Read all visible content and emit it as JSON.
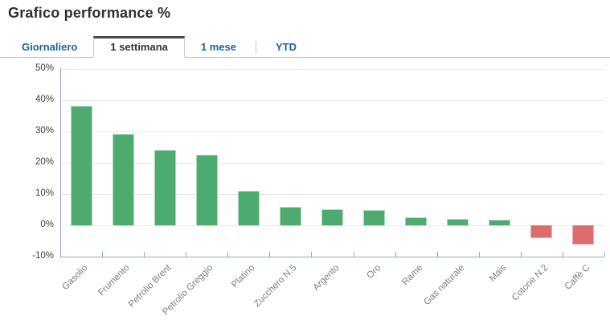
{
  "page": {
    "title": "Grafico performance %"
  },
  "tabs": [
    {
      "label": "Giornaliero",
      "active": false
    },
    {
      "label": "1 settimana",
      "active": true
    },
    {
      "label": "1 mese",
      "active": false
    },
    {
      "label": "YTD",
      "active": false
    }
  ],
  "chart_data": {
    "type": "bar",
    "title": "Grafico performance %",
    "xlabel": "",
    "ylabel": "",
    "categories": [
      "Gasolio",
      "Frumento",
      "Petrolio Brent",
      "Petrolio Greggio",
      "Platino",
      "Zucchero N.5",
      "Argento",
      "Oro",
      "Rame",
      "Gas naturale",
      "Mais",
      "Cotone N.2",
      "Caffè C"
    ],
    "values": [
      38.2,
      29.2,
      24.2,
      22.5,
      11.0,
      5.9,
      5.2,
      4.8,
      2.6,
      2.0,
      1.7,
      -4.1,
      -6.2
    ],
    "unit": "%",
    "ylim": [
      -10,
      50
    ],
    "ytick_step": 10,
    "ytick_labels": [
      "50%",
      "40%",
      "30%",
      "20%",
      "10%",
      "0%",
      "-10%"
    ],
    "grid": true,
    "legend": "none",
    "colors": {
      "positive_fill": "#4dab6f",
      "positive_border": "#aad9bb",
      "negative_fill": "#dd6d6d",
      "negative_border": "#f0adad",
      "axis_line": "#8aa9cd",
      "gridline": "#e6e6e6",
      "ytick_label": "#3c3c3c",
      "category_label": "#7d7d7d",
      "tab_link": "#1a61ae",
      "active_tab_border": "#4a4a4a",
      "title_text": "#2f2f2f"
    }
  }
}
